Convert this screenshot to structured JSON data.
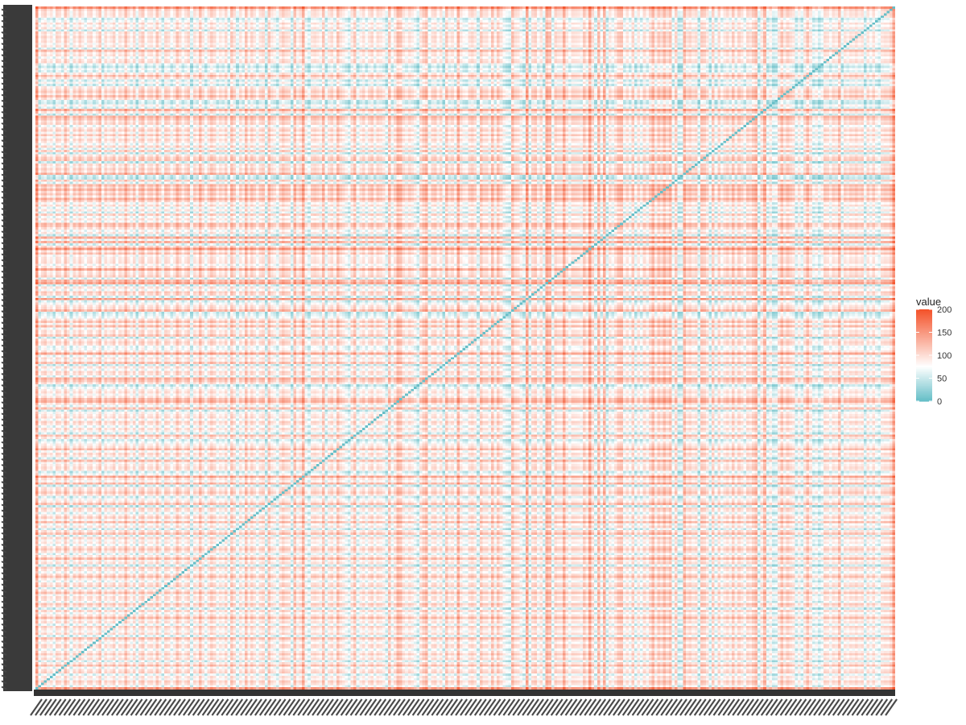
{
  "chart_data": {
    "type": "heatmap",
    "title": "",
    "xlabel": "",
    "ylabel": "",
    "n_rows": 300,
    "n_cols": 300,
    "x_tick_labels_legible": false,
    "y_tick_labels_legible": false,
    "diagonal_value": 0,
    "value_range": [
      0,
      200
    ],
    "row_profile": [
      210,
      120,
      95,
      100,
      90,
      30,
      55,
      100,
      60,
      95,
      20,
      100,
      85,
      110,
      90,
      100,
      75,
      95,
      30,
      150,
      85,
      100,
      60,
      95,
      105,
      40,
      10,
      55,
      30,
      90,
      150,
      95,
      25,
      70,
      20,
      90,
      105,
      130,
      95,
      150,
      100,
      25,
      15,
      70,
      30,
      165,
      90,
      20,
      160,
      135,
      100,
      115,
      55,
      95,
      120,
      70,
      135,
      75,
      110,
      90,
      55,
      110,
      35,
      120,
      20,
      90,
      125,
      135,
      15,
      105,
      90,
      120,
      100,
      165,
      20,
      10,
      120,
      40,
      150,
      115,
      160,
      110,
      140,
      90,
      165,
      115,
      65,
      105,
      45,
      90,
      30,
      120,
      55,
      95,
      60,
      150,
      140,
      100,
      60,
      90,
      20,
      170,
      55,
      160,
      30,
      110,
      200,
      95,
      140,
      75,
      90,
      95,
      100,
      60,
      95,
      180,
      95,
      100,
      120,
      35,
      155,
      180,
      25,
      95,
      60,
      125,
      110,
      30,
      190,
      30,
      65,
      95,
      105,
      155,
      20,
      35,
      55,
      95,
      140,
      75,
      150,
      65,
      100,
      95,
      135,
      20,
      90,
      115,
      100,
      50,
      60,
      90,
      175,
      55,
      100,
      80,
      140,
      20,
      95,
      60,
      110,
      100,
      45,
      160,
      135,
      95,
      15,
      55,
      80,
      100,
      70,
      95,
      150,
      165,
      100,
      55,
      140,
      20,
      70,
      90,
      105,
      60,
      115,
      95,
      50,
      100,
      75,
      30,
      140,
      95,
      25,
      55,
      80,
      100,
      150,
      65,
      110,
      90,
      30,
      145,
      70,
      90,
      105,
      95,
      25,
      60,
      180,
      100,
      75,
      150,
      20,
      95,
      105,
      130,
      100,
      30,
      70,
      90,
      140,
      15,
      110,
      95,
      45,
      90,
      120,
      75,
      150,
      60,
      95,
      25,
      100,
      140,
      35,
      110,
      70,
      90,
      55,
      105,
      130,
      95,
      40,
      90,
      150,
      75,
      100,
      20,
      120,
      95,
      60,
      105,
      145,
      85,
      50,
      100,
      115,
      30,
      90,
      140,
      70,
      105,
      95,
      55,
      130,
      100,
      25,
      110,
      60,
      95,
      150,
      80,
      100,
      45,
      120,
      90,
      70,
      105,
      35,
      140,
      95,
      60,
      110,
      100,
      50,
      90,
      125,
      75,
      105,
      30,
      95,
      145,
      60,
      100,
      115,
      40,
      90,
      70,
      120,
      100,
      55,
      200
    ],
    "legend": {
      "title": "value",
      "ticks": [
        0,
        50,
        100,
        150,
        200
      ],
      "low_color": "#67bfc8",
      "mid_color": "#ffffff",
      "high_color": "#f4532b",
      "midpoint": 75,
      "placement": "right"
    }
  }
}
